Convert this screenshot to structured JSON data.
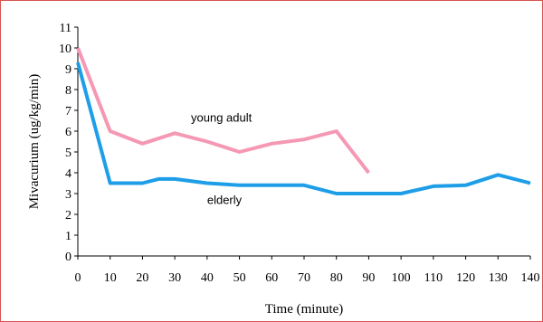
{
  "chart_data": {
    "type": "line",
    "xlabel": "Time (minute)",
    "ylabel": "Mivacurium (ug/kg/min)",
    "xlim": [
      0,
      140
    ],
    "ylim": [
      0,
      11
    ],
    "xticks": [
      "0",
      "10",
      "20",
      "30",
      "40",
      "50",
      "60",
      "70",
      "80",
      "90",
      "100",
      "110",
      "120",
      "130",
      "140"
    ],
    "yticks": [
      "0",
      "1",
      "2",
      "3",
      "4",
      "5",
      "6",
      "7",
      "8",
      "9",
      "10",
      "11"
    ],
    "grid": false,
    "series": [
      {
        "name": "young adult",
        "color": "#f598b4",
        "x": [
          0,
          10,
          20,
          30,
          40,
          50,
          60,
          70,
          80,
          90
        ],
        "y": [
          10,
          6.0,
          5.4,
          5.9,
          5.5,
          5.0,
          5.4,
          5.6,
          6.0,
          4.0
        ]
      },
      {
        "name": "elderly",
        "color": "#1f9ee8",
        "x": [
          0,
          10,
          20,
          25,
          30,
          40,
          50,
          60,
          70,
          80,
          90,
          100,
          110,
          120,
          130,
          140
        ],
        "y": [
          9.3,
          3.5,
          3.5,
          3.7,
          3.7,
          3.5,
          3.4,
          3.4,
          3.4,
          3.0,
          3.0,
          3.0,
          3.35,
          3.4,
          3.9,
          3.5
        ]
      }
    ],
    "annotations": [
      {
        "text": "young adult",
        "series": "young adult"
      },
      {
        "text": "elderly",
        "series": "elderly"
      }
    ]
  }
}
